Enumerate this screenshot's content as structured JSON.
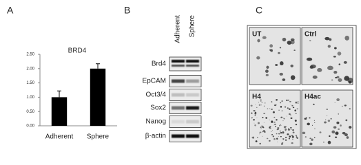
{
  "panel_labels": [
    "A",
    "B",
    "C"
  ],
  "chart_data": {
    "type": "bar",
    "title": "BRD4",
    "categories": [
      "Adherent",
      "Sphere"
    ],
    "values": [
      1.0,
      2.0
    ],
    "errors": [
      0.22,
      0.17
    ],
    "color": "#000000",
    "ylim": [
      0,
      2.5
    ],
    "yticks": [
      {
        "value": 0,
        "label": "0.00"
      },
      {
        "value": 0.5,
        "label": "0.50"
      },
      {
        "value": 1,
        "label": "1.00"
      },
      {
        "value": 1.5,
        "label": "1.50"
      },
      {
        "value": 2,
        "label": "2.00"
      },
      {
        "value": 2.5,
        "label": "2.50"
      }
    ]
  },
  "blot": {
    "columns": [
      "Adherent",
      "Sphere"
    ],
    "rows": [
      "Brd4",
      "EpCAM",
      "Oct3/4",
      "Sox2",
      "Nanog",
      "β-actin"
    ]
  },
  "colony": {
    "panels": [
      "UT",
      "Ctrl",
      "H4",
      "H4ac"
    ]
  }
}
